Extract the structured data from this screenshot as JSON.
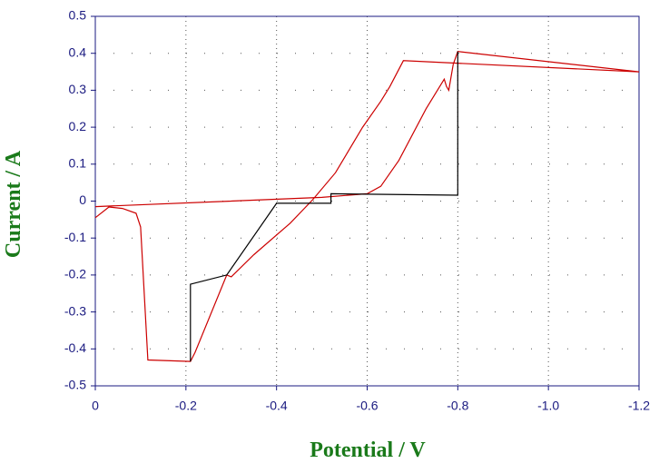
{
  "chart_data": {
    "type": "line",
    "x_label": "Potential / V",
    "y_label": "Current / A",
    "xlim": [
      0,
      -1.2
    ],
    "ylim": [
      -0.5,
      0.5
    ],
    "xticks": [
      0,
      -0.2,
      -0.4,
      -0.6,
      -0.8,
      {
        "value": -1,
        "label": "-1.0"
      },
      -1.2
    ],
    "yticks": [
      0.5,
      0.4,
      0.3,
      0.2,
      0.1,
      0,
      -0.1,
      -0.2,
      -0.3,
      -0.4,
      -0.5
    ],
    "grid": true,
    "series": [
      {
        "color": "#cc0000",
        "x": [
          0,
          -0.03,
          -0.06,
          -0.09,
          -0.1,
          -0.116,
          -0.21,
          -0.22,
          -0.29,
          -0.3,
          -0.35,
          -0.43,
          -0.48,
          -0.53,
          -0.59,
          -0.63,
          -0.65,
          -0.68,
          -1.2,
          -0.8,
          -0.79,
          -0.78,
          -0.775,
          -0.77,
          -0.73,
          -0.67,
          -0.63,
          -0.6,
          -0.5,
          0
        ],
        "values": [
          -0.045,
          -0.016,
          -0.02,
          -0.033,
          -0.07,
          -0.43,
          -0.434,
          -0.41,
          -0.2,
          -0.205,
          -0.145,
          -0.06,
          0.004,
          0.077,
          0.2,
          0.27,
          0.31,
          0.38,
          0.35,
          0.405,
          0.37,
          0.3,
          0.31,
          0.33,
          0.25,
          0.11,
          0.04,
          0.02,
          0.01,
          -0.015
        ]
      },
      {
        "color": "#000000",
        "x": [
          -0.21,
          -0.21,
          -0.29,
          -0.4,
          -0.52,
          -0.52,
          -0.8,
          -0.8
        ],
        "values": [
          -0.434,
          -0.225,
          -0.2,
          -0.006,
          -0.006,
          0.02,
          0.016,
          0.405
        ]
      }
    ]
  }
}
